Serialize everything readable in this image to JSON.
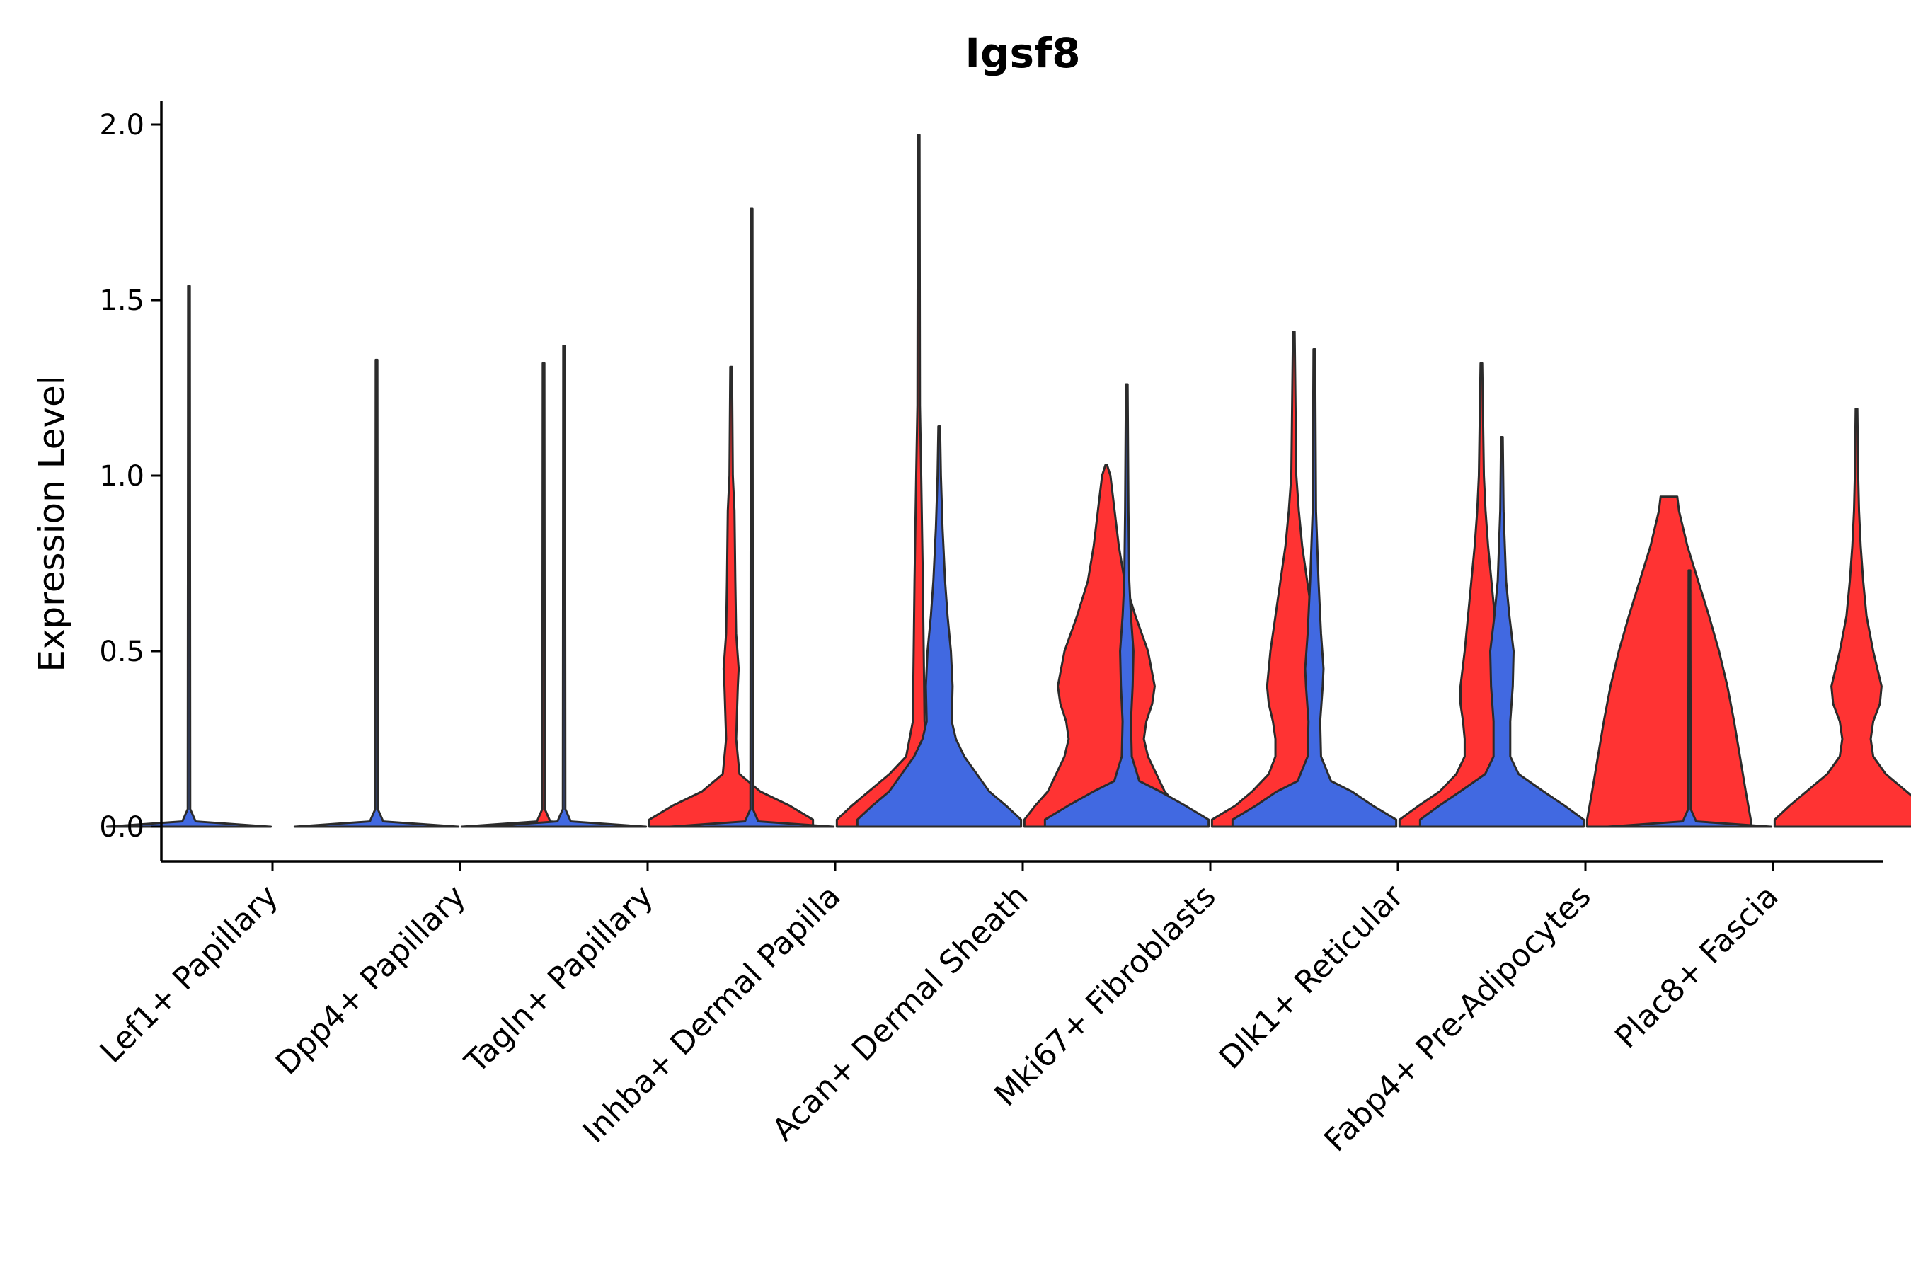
{
  "chart_data": {
    "type": "violin",
    "title": "Igsf8",
    "xlabel": "",
    "ylabel": "Expression Level",
    "ylim": [
      -0.1,
      2.07
    ],
    "yticks": [
      "0.0",
      "0.5",
      "1.0",
      "1.5",
      "2.0"
    ],
    "ytick_values": [
      0,
      0.5,
      1.0,
      1.5,
      2.0
    ],
    "colors": {
      "blue": "#4169E1",
      "red": "#FF3333",
      "outline": "#2b2b2b"
    },
    "categories": [
      "Lef1+ Papillary",
      "Dpp4+ Papillary",
      "Tagln+ Papillary",
      "Inhba+ Dermal Papilla",
      "Acan+ Dermal Sheath",
      "Mki67+ Fibroblasts",
      "Dlk1+ Reticular",
      "Fabp4+ Pre-Adipocytes",
      "Plac8+ Fascia"
    ],
    "violins": [
      {
        "category": "Lef1+ Papillary",
        "group": "blue",
        "max": 1.54,
        "profile": [
          [
            0,
            0.98
          ],
          [
            0.015,
            0.08
          ],
          [
            0.05,
            0.015
          ],
          [
            1.54,
            0.01
          ]
        ]
      },
      {
        "category": "Lef1+ Papillary",
        "group": "red",
        "max": 0.0,
        "profile": []
      },
      {
        "category": "Dpp4+ Papillary",
        "group": "blue",
        "max": 1.33,
        "profile": [
          [
            0,
            0.98
          ],
          [
            0.015,
            0.08
          ],
          [
            0.05,
            0.015
          ],
          [
            1.33,
            0.01
          ]
        ]
      },
      {
        "category": "Dpp4+ Papillary",
        "group": "red",
        "max": 1.32,
        "profile": [
          [
            0,
            0.98
          ],
          [
            0.015,
            0.08
          ],
          [
            0.05,
            0.015
          ],
          [
            1.32,
            0.01
          ]
        ]
      },
      {
        "category": "Tagln+ Papillary",
        "group": "blue",
        "max": 1.37,
        "profile": [
          [
            0,
            0.98
          ],
          [
            0.015,
            0.08
          ],
          [
            0.05,
            0.015
          ],
          [
            1.37,
            0.01
          ]
        ]
      },
      {
        "category": "Tagln+ Papillary",
        "group": "red",
        "max": 1.31,
        "profile": [
          [
            0,
            0.98
          ],
          [
            0.02,
            0.98
          ],
          [
            0.06,
            0.7
          ],
          [
            0.1,
            0.35
          ],
          [
            0.15,
            0.1
          ],
          [
            0.25,
            0.06
          ],
          [
            0.4,
            0.08
          ],
          [
            0.45,
            0.09
          ],
          [
            0.55,
            0.06
          ],
          [
            0.7,
            0.05
          ],
          [
            0.9,
            0.04
          ],
          [
            1.0,
            0.02
          ],
          [
            1.31,
            0.01
          ]
        ]
      },
      {
        "category": "Inhba+ Dermal Papilla",
        "group": "blue",
        "max": 1.76,
        "profile": [
          [
            0,
            0.98
          ],
          [
            0.015,
            0.08
          ],
          [
            0.05,
            0.015
          ],
          [
            1.76,
            0.01
          ]
        ]
      },
      {
        "category": "Inhba+ Dermal Papilla",
        "group": "red",
        "max": 1.97,
        "profile": [
          [
            0,
            0.98
          ],
          [
            0.02,
            0.98
          ],
          [
            0.06,
            0.8
          ],
          [
            0.1,
            0.6
          ],
          [
            0.15,
            0.35
          ],
          [
            0.2,
            0.15
          ],
          [
            0.3,
            0.07
          ],
          [
            0.5,
            0.06
          ],
          [
            0.7,
            0.05
          ],
          [
            1.0,
            0.03
          ],
          [
            1.2,
            0.015
          ],
          [
            1.97,
            0.01
          ]
        ]
      },
      {
        "category": "Acan+ Dermal Sheath",
        "group": "blue",
        "max": 1.14,
        "profile": [
          [
            0,
            0.98
          ],
          [
            0.02,
            0.98
          ],
          [
            0.06,
            0.8
          ],
          [
            0.1,
            0.6
          ],
          [
            0.15,
            0.45
          ],
          [
            0.2,
            0.3
          ],
          [
            0.25,
            0.2
          ],
          [
            0.3,
            0.15
          ],
          [
            0.4,
            0.16
          ],
          [
            0.5,
            0.14
          ],
          [
            0.6,
            0.1
          ],
          [
            0.7,
            0.07
          ],
          [
            0.85,
            0.04
          ],
          [
            1.0,
            0.02
          ],
          [
            1.14,
            0.01
          ]
        ]
      },
      {
        "category": "Acan+ Dermal Sheath",
        "group": "red",
        "max": 1.03,
        "profile": [
          [
            0,
            0.98
          ],
          [
            0.02,
            0.98
          ],
          [
            0.06,
            0.85
          ],
          [
            0.1,
            0.7
          ],
          [
            0.15,
            0.6
          ],
          [
            0.2,
            0.5
          ],
          [
            0.25,
            0.45
          ],
          [
            0.3,
            0.48
          ],
          [
            0.35,
            0.55
          ],
          [
            0.4,
            0.58
          ],
          [
            0.5,
            0.5
          ],
          [
            0.6,
            0.35
          ],
          [
            0.7,
            0.22
          ],
          [
            0.8,
            0.15
          ],
          [
            0.9,
            0.1
          ],
          [
            1.0,
            0.05
          ],
          [
            1.03,
            0.01
          ]
        ]
      },
      {
        "category": "Mki67+ Fibroblasts",
        "group": "blue",
        "max": 1.26,
        "profile": [
          [
            0,
            0.98
          ],
          [
            0.02,
            0.98
          ],
          [
            0.06,
            0.7
          ],
          [
            0.1,
            0.4
          ],
          [
            0.13,
            0.15
          ],
          [
            0.2,
            0.06
          ],
          [
            0.3,
            0.05
          ],
          [
            0.4,
            0.07
          ],
          [
            0.5,
            0.08
          ],
          [
            0.6,
            0.05
          ],
          [
            0.7,
            0.03
          ],
          [
            0.9,
            0.02
          ],
          [
            1.26,
            0.01
          ]
        ]
      },
      {
        "category": "Mki67+ Fibroblasts",
        "group": "red",
        "max": 1.41,
        "profile": [
          [
            0,
            0.98
          ],
          [
            0.02,
            0.98
          ],
          [
            0.06,
            0.7
          ],
          [
            0.1,
            0.5
          ],
          [
            0.15,
            0.3
          ],
          [
            0.2,
            0.22
          ],
          [
            0.25,
            0.22
          ],
          [
            0.3,
            0.25
          ],
          [
            0.35,
            0.3
          ],
          [
            0.4,
            0.32
          ],
          [
            0.5,
            0.28
          ],
          [
            0.6,
            0.22
          ],
          [
            0.7,
            0.16
          ],
          [
            0.8,
            0.1
          ],
          [
            0.9,
            0.06
          ],
          [
            1.0,
            0.03
          ],
          [
            1.41,
            0.01
          ]
        ]
      },
      {
        "category": "Dlk1+ Reticular",
        "group": "blue",
        "max": 1.36,
        "profile": [
          [
            0,
            0.98
          ],
          [
            0.02,
            0.98
          ],
          [
            0.06,
            0.7
          ],
          [
            0.1,
            0.45
          ],
          [
            0.13,
            0.2
          ],
          [
            0.2,
            0.08
          ],
          [
            0.3,
            0.07
          ],
          [
            0.4,
            0.1
          ],
          [
            0.45,
            0.11
          ],
          [
            0.55,
            0.08
          ],
          [
            0.7,
            0.05
          ],
          [
            0.9,
            0.02
          ],
          [
            1.36,
            0.01
          ]
        ]
      },
      {
        "category": "Dlk1+ Reticular",
        "group": "red",
        "max": 1.32,
        "profile": [
          [
            0,
            0.98
          ],
          [
            0.02,
            0.98
          ],
          [
            0.06,
            0.75
          ],
          [
            0.1,
            0.5
          ],
          [
            0.15,
            0.3
          ],
          [
            0.2,
            0.2
          ],
          [
            0.25,
            0.2
          ],
          [
            0.3,
            0.22
          ],
          [
            0.35,
            0.25
          ],
          [
            0.4,
            0.25
          ],
          [
            0.5,
            0.2
          ],
          [
            0.6,
            0.16
          ],
          [
            0.7,
            0.12
          ],
          [
            0.8,
            0.08
          ],
          [
            0.9,
            0.05
          ],
          [
            1.0,
            0.03
          ],
          [
            1.32,
            0.01
          ]
        ]
      },
      {
        "category": "Fabp4+ Pre-Adipocytes",
        "group": "blue",
        "max": 1.11,
        "profile": [
          [
            0,
            0.98
          ],
          [
            0.02,
            0.98
          ],
          [
            0.06,
            0.75
          ],
          [
            0.1,
            0.5
          ],
          [
            0.15,
            0.2
          ],
          [
            0.2,
            0.1
          ],
          [
            0.3,
            0.1
          ],
          [
            0.4,
            0.13
          ],
          [
            0.5,
            0.14
          ],
          [
            0.6,
            0.09
          ],
          [
            0.7,
            0.05
          ],
          [
            0.9,
            0.02
          ],
          [
            1.11,
            0.01
          ]
        ]
      },
      {
        "category": "Fabp4+ Pre-Adipocytes",
        "group": "red",
        "max": 0.94,
        "profile": [
          [
            0,
            0.98
          ],
          [
            0.02,
            0.98
          ],
          [
            0.1,
            0.92
          ],
          [
            0.2,
            0.85
          ],
          [
            0.3,
            0.78
          ],
          [
            0.4,
            0.7
          ],
          [
            0.5,
            0.6
          ],
          [
            0.6,
            0.48
          ],
          [
            0.7,
            0.35
          ],
          [
            0.8,
            0.22
          ],
          [
            0.9,
            0.12
          ],
          [
            0.94,
            0.1
          ]
        ]
      },
      {
        "category": "Plac8+ Fascia",
        "group": "blue",
        "max": 0.73,
        "profile": [
          [
            0,
            0.98
          ],
          [
            0.015,
            0.08
          ],
          [
            0.05,
            0.015
          ],
          [
            0.73,
            0.01
          ]
        ]
      },
      {
        "category": "Plac8+ Fascia",
        "group": "red",
        "max": 1.19,
        "profile": [
          [
            0,
            0.98
          ],
          [
            0.02,
            0.98
          ],
          [
            0.06,
            0.8
          ],
          [
            0.1,
            0.6
          ],
          [
            0.15,
            0.35
          ],
          [
            0.2,
            0.2
          ],
          [
            0.25,
            0.17
          ],
          [
            0.3,
            0.2
          ],
          [
            0.35,
            0.28
          ],
          [
            0.4,
            0.3
          ],
          [
            0.5,
            0.2
          ],
          [
            0.6,
            0.12
          ],
          [
            0.7,
            0.08
          ],
          [
            0.8,
            0.05
          ],
          [
            0.9,
            0.03
          ],
          [
            1.0,
            0.02
          ],
          [
            1.19,
            0.01
          ]
        ]
      }
    ]
  }
}
